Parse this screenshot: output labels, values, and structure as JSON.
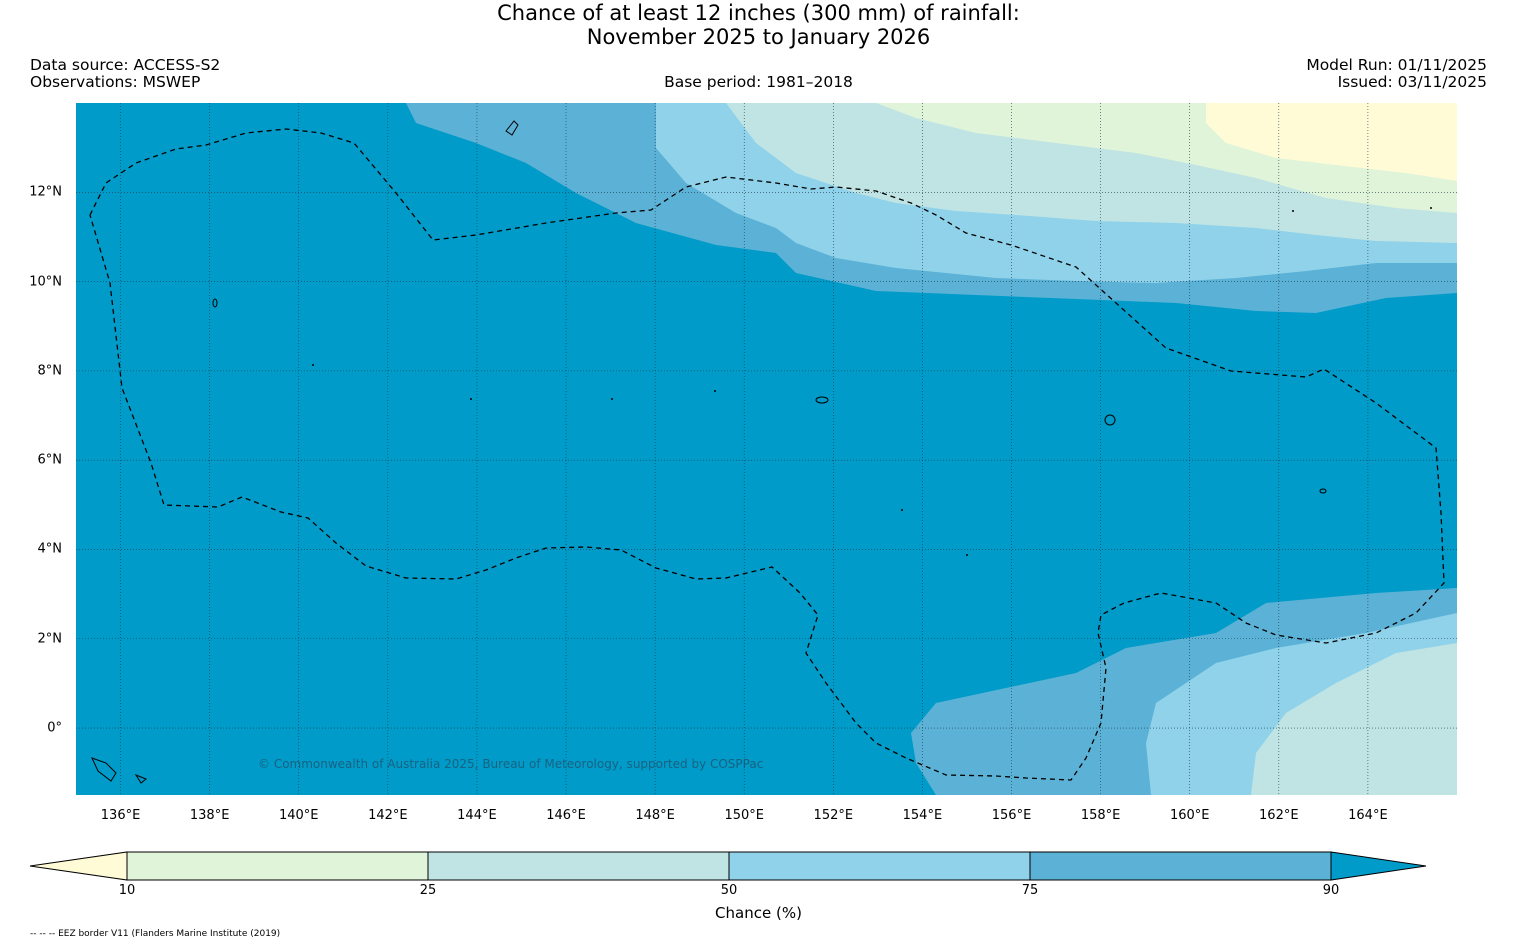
{
  "title": {
    "line1": "Chance of at least 12 inches (300  mm) of rainfall:",
    "line2": "November 2025 to January 2026"
  },
  "header": {
    "data_source": "Data source: ACCESS-S2",
    "observations": "Observations: MSWEP",
    "base_period": "Base period: 1981–2018",
    "model_run": "Model Run: 01/11/2025",
    "issued": "Issued: 03/11/2025"
  },
  "map": {
    "x_ticks": [
      "136°E",
      "138°E",
      "140°E",
      "142°E",
      "144°E",
      "146°E",
      "148°E",
      "150°E",
      "152°E",
      "154°E",
      "156°E",
      "158°E",
      "160°E",
      "162°E",
      "164°E"
    ],
    "y_ticks": [
      "12°N",
      "10°N",
      "8°N",
      "6°N",
      "4°N",
      "2°N",
      "0°"
    ],
    "lon_values": [
      136,
      138,
      140,
      142,
      144,
      146,
      148,
      150,
      152,
      154,
      156,
      158,
      160,
      162,
      164
    ],
    "lat_values": [
      12,
      10,
      8,
      6,
      4,
      2,
      0
    ],
    "lon_range": [
      135,
      166
    ],
    "lat_range": [
      -1.5,
      14
    ],
    "copyright": "© Commonwealth of Australia 2025, Bureau of Meteorology, supported by COSPPac"
  },
  "colorbar": {
    "title": "Chance (%)",
    "labels": [
      "10",
      "25",
      "50",
      "75",
      "90"
    ],
    "bins": [
      {
        "range": "<10",
        "color": "#fffbd6"
      },
      {
        "range": "10-25",
        "color": "#dff4d8"
      },
      {
        "range": "25-50",
        "color": "#c0e4e4"
      },
      {
        "range": "50-75",
        "color": "#8fd2ea"
      },
      {
        "range": "75-90",
        "color": "#5cb2d6"
      },
      {
        "range": ">90",
        "color": "#009bc8"
      }
    ]
  },
  "footnote": "-- -- -- EEZ border V11 (Flanders Marine Institute (2019)"
}
